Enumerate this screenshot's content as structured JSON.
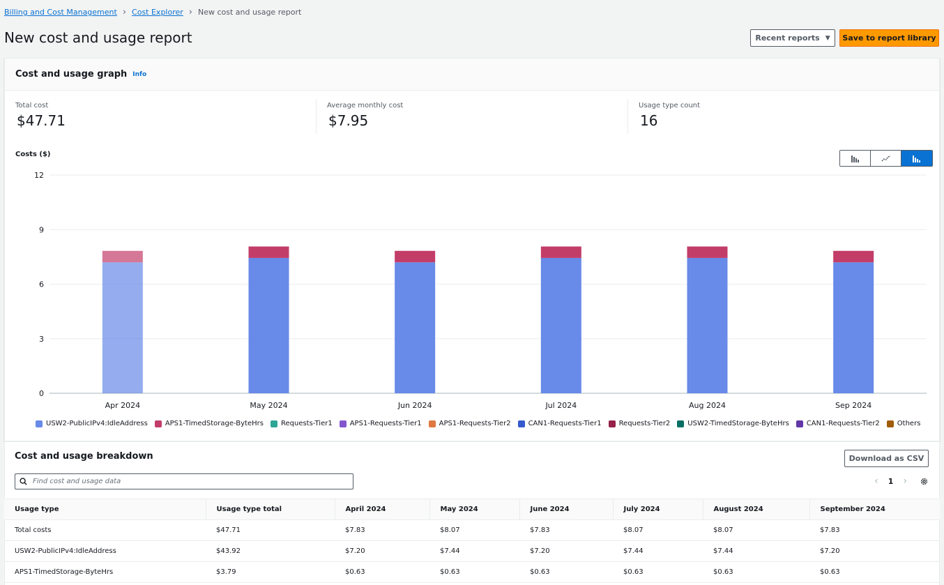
{
  "breadcrumb": {
    "items": [
      "Billing and Cost Management",
      "Cost Explorer"
    ],
    "current": "New cost and usage report"
  },
  "page": {
    "title": "New cost and usage report"
  },
  "actions": {
    "recent_reports": "Recent reports",
    "save": "Save to report library"
  },
  "graph_card": {
    "title": "Cost and usage graph",
    "info": "Info",
    "metrics": [
      {
        "label": "Total cost",
        "value": "$47.71"
      },
      {
        "label": "Average monthly cost",
        "value": "$7.95"
      },
      {
        "label": "Usage type count",
        "value": "16"
      }
    ],
    "y_axis_label": "Costs ($)"
  },
  "chart_data": {
    "type": "bar",
    "stacked": true,
    "categories": [
      "Apr 2024",
      "May 2024",
      "Jun 2024",
      "Jul 2024",
      "Aug 2024",
      "Sep 2024"
    ],
    "ylabel": "Costs ($)",
    "ylim": [
      0,
      12
    ],
    "yticks": [
      0,
      3,
      6,
      9,
      12
    ],
    "grid": true,
    "legend_position": "bottom",
    "series": [
      {
        "name": "USW2-PublicIPv4:IdleAddress",
        "color": "#688ae8",
        "values": [
          7.2,
          7.44,
          7.2,
          7.44,
          7.44,
          7.2
        ]
      },
      {
        "name": "APS1-TimedStorage-ByteHrs",
        "color": "#c33d69",
        "values": [
          0.63,
          0.63,
          0.63,
          0.63,
          0.63,
          0.63
        ]
      },
      {
        "name": "Requests-Tier1",
        "color": "#2ea597"
      },
      {
        "name": "APS1-Requests-Tier1",
        "color": "#8456ce"
      },
      {
        "name": "APS1-Requests-Tier2",
        "color": "#e07941"
      },
      {
        "name": "CAN1-Requests-Tier1",
        "color": "#3759ce"
      },
      {
        "name": "Requests-Tier2",
        "color": "#962249"
      },
      {
        "name": "USW2-TimedStorage-ByteHrs",
        "color": "#096f64"
      },
      {
        "name": "CAN1-Requests-Tier2",
        "color": "#6237a7"
      },
      {
        "name": "Others",
        "color": "#a15c0a"
      }
    ]
  },
  "breakdown": {
    "title": "Cost and usage breakdown",
    "download": "Download as CSV",
    "search_placeholder": "Find cost and usage data",
    "page": "1",
    "columns": [
      "Usage type",
      "Usage type total",
      "April 2024",
      "May 2024",
      "June 2024",
      "July 2024",
      "August 2024",
      "September 2024"
    ],
    "rows": [
      [
        "Total costs",
        "$47.71",
        "$7.83",
        "$8.07",
        "$7.83",
        "$8.07",
        "$8.07",
        "$7.83"
      ],
      [
        "USW2-PublicIPv4:IdleAddress",
        "$43.92",
        "$7.20",
        "$7.44",
        "$7.20",
        "$7.44",
        "$7.44",
        "$7.20"
      ],
      [
        "APS1-TimedStorage-ByteHrs",
        "$3.79",
        "$0.63",
        "$0.63",
        "$0.63",
        "$0.63",
        "$0.63",
        "$0.63"
      ]
    ]
  }
}
